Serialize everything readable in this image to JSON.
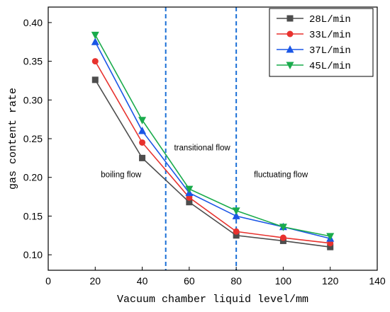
{
  "chart_data": {
    "type": "line",
    "xlabel": "Vacuum chamber liquid level/mm",
    "ylabel": "gas content rate",
    "xlim": [
      0,
      140
    ],
    "ylim": [
      0.08,
      0.42
    ],
    "xticks": [
      0,
      20,
      40,
      60,
      80,
      100,
      120,
      140
    ],
    "yticks": [
      0.1,
      0.15,
      0.2,
      0.25,
      0.3,
      0.35,
      0.4
    ],
    "x": [
      20,
      40,
      60,
      80,
      100,
      120
    ],
    "series": [
      {
        "name": "28L/min",
        "color": "#4d4d4d",
        "marker": "square",
        "values": [
          0.326,
          0.225,
          0.168,
          0.125,
          0.118,
          0.11
        ]
      },
      {
        "name": "33L/min",
        "color": "#e8322e",
        "marker": "circle",
        "values": [
          0.35,
          0.245,
          0.174,
          0.13,
          0.122,
          0.115
        ]
      },
      {
        "name": "37L/min",
        "color": "#1a56e6",
        "marker": "triangle-up",
        "values": [
          0.375,
          0.26,
          0.18,
          0.15,
          0.136,
          0.121
        ]
      },
      {
        "name": "45L/min",
        "color": "#1aab4c",
        "marker": "triangle-down",
        "values": [
          0.384,
          0.274,
          0.185,
          0.157,
          0.136,
          0.124
        ]
      }
    ],
    "vlines": [
      {
        "x": 50,
        "color": "#1a6fd6",
        "style": "dashed"
      },
      {
        "x": 80,
        "color": "#1a6fd6",
        "style": "dashed"
      }
    ],
    "annotations": [
      {
        "text": "boiling flow",
        "x": 31,
        "y": 0.2
      },
      {
        "text": "transitional flow",
        "x": 65.5,
        "y": 0.235
      },
      {
        "text": "fluctuating flow",
        "x": 99,
        "y": 0.2
      }
    ],
    "legend_position": "top-right",
    "grid": false
  }
}
